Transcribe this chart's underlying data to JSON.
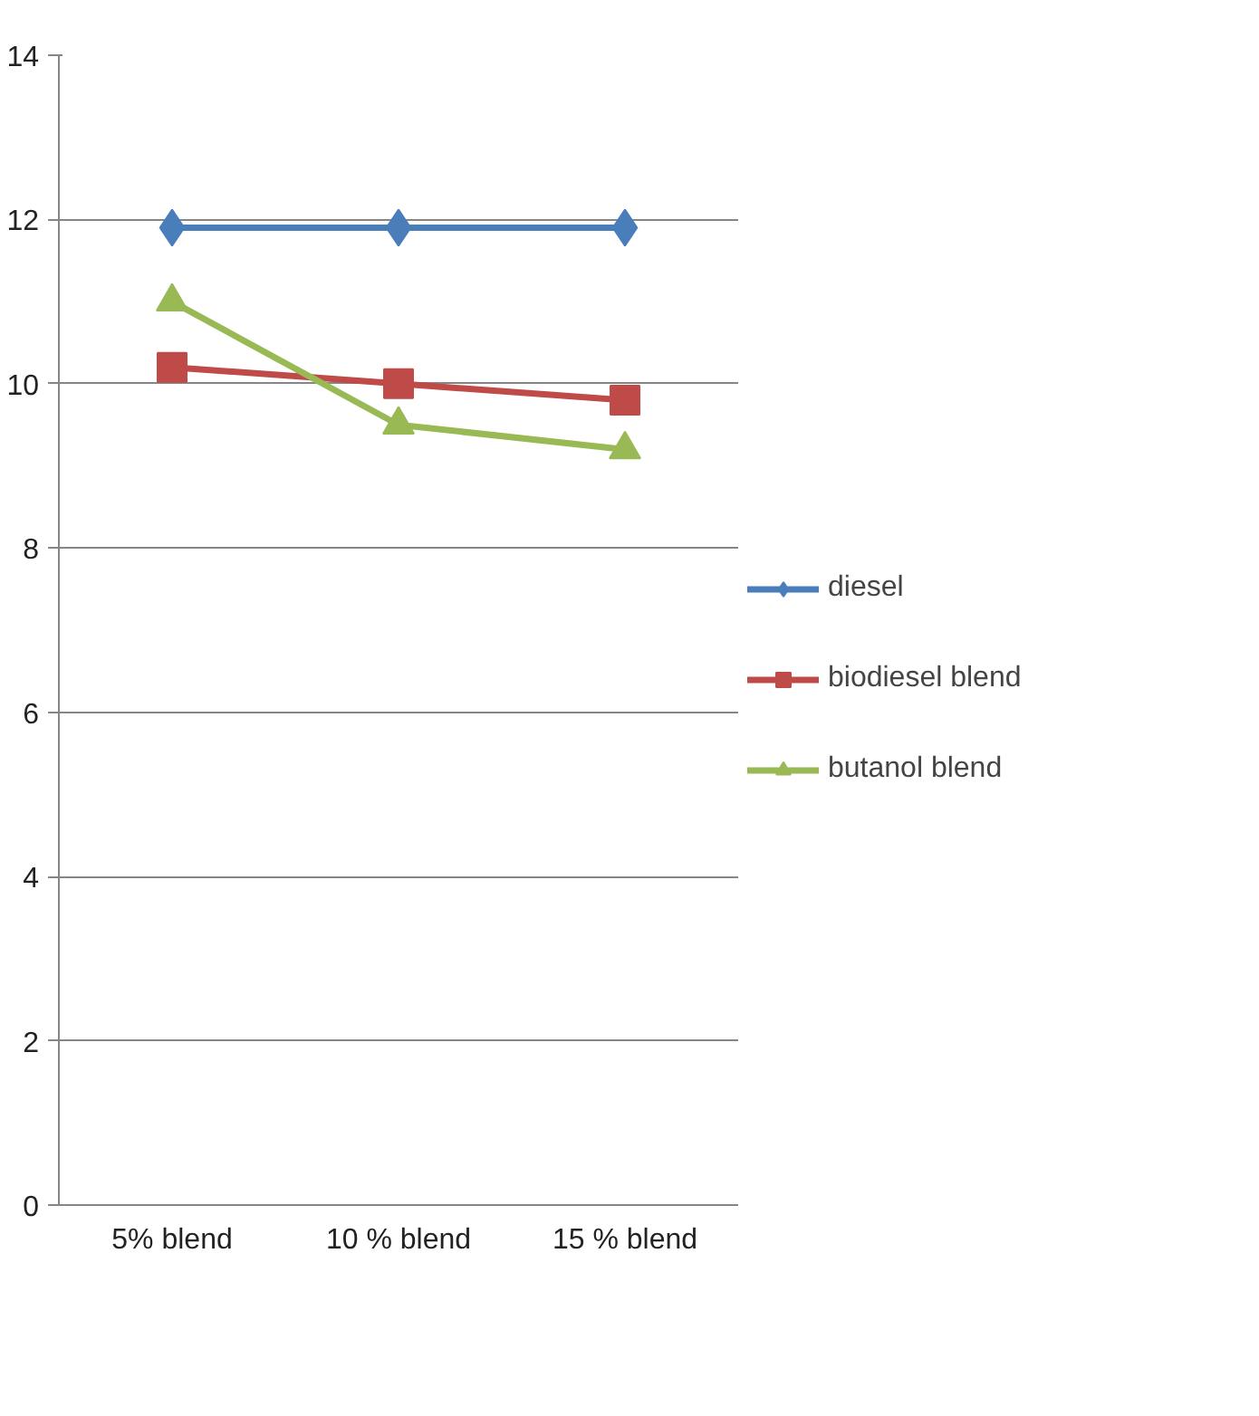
{
  "chart_data": {
    "type": "line",
    "categories": [
      "5% blend",
      "10 % blend",
      "15 % blend"
    ],
    "series": [
      {
        "name": "diesel",
        "color": "#4a7ebb",
        "marker": "diamond",
        "values": [
          11.9,
          11.9,
          11.9
        ]
      },
      {
        "name": "biodiesel blend",
        "color": "#be4b48",
        "marker": "square",
        "values": [
          10.2,
          10.0,
          9.8
        ]
      },
      {
        "name": "butanol blend",
        "color": "#98b954",
        "marker": "triangle",
        "values": [
          11.0,
          9.5,
          9.2
        ]
      }
    ],
    "ylim": [
      0,
      14
    ],
    "yticks": [
      0,
      2,
      4,
      6,
      8,
      10,
      12,
      14
    ],
    "grid": "y",
    "legend": "right",
    "line_style": "solid"
  }
}
